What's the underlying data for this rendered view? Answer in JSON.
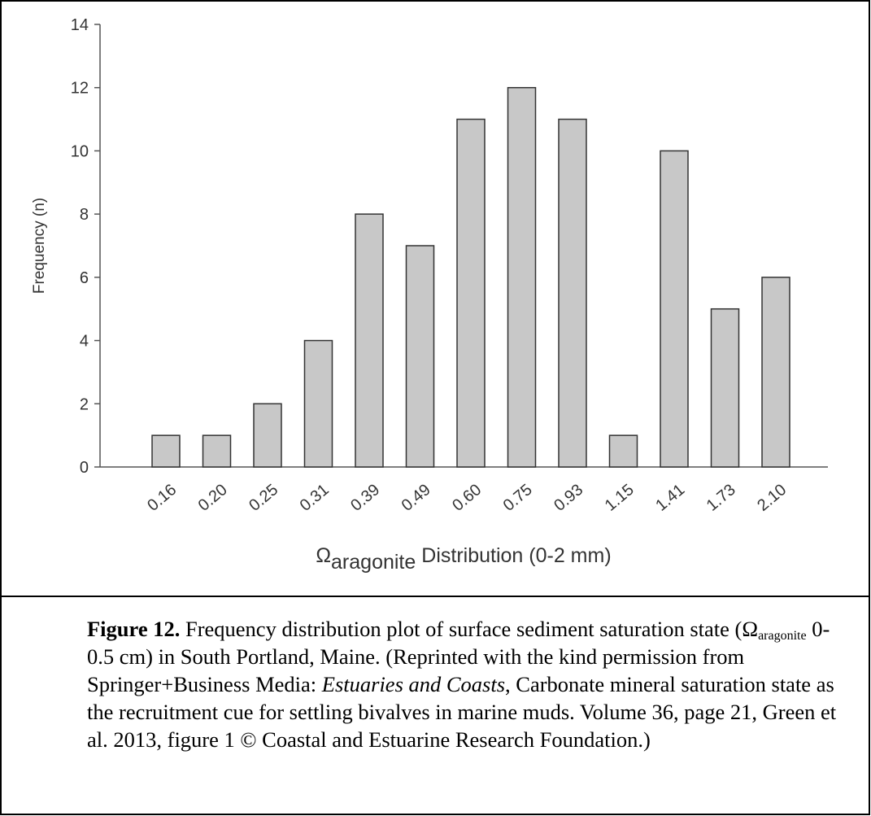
{
  "chart_data": {
    "type": "bar",
    "y_label": "Frequency (n)",
    "x_label": {
      "symbol": "Ω",
      "subscript": "aragonite",
      "text": "Distribution (0-2 mm)"
    },
    "categories": [
      "0.16",
      "0.20",
      "0.25",
      "0.31",
      "0.39",
      "0.49",
      "0.60",
      "0.75",
      "0.93",
      "1.15",
      "1.41",
      "1.73",
      "2.10"
    ],
    "values": [
      1,
      1,
      2,
      4,
      8,
      7,
      11,
      12,
      11,
      1,
      10,
      5,
      6
    ],
    "color": "#c8c8c8",
    "ylim": [
      0,
      14
    ],
    "yticks": [
      0,
      2,
      4,
      6,
      8,
      10,
      12,
      14
    ],
    "grid": false
  },
  "caption": {
    "label": "Figure 12.",
    "text1": " Frequency distribution plot of surface sediment saturation state (Ω",
    "subscript": "aragonite",
    "text2": " 0-0.5 cm) in South Portland, Maine.  (Reprinted with the kind permission from Springer+Business Media: ",
    "journal": "Estuaries and Coasts",
    "text3": ", Carbonate mineral saturation state as the recruitment cue for settling bivalves in marine muds. Volume 36, page 21, Green et al. 2013, figure 1 © Coastal and Estuarine Research Foundation.)"
  }
}
